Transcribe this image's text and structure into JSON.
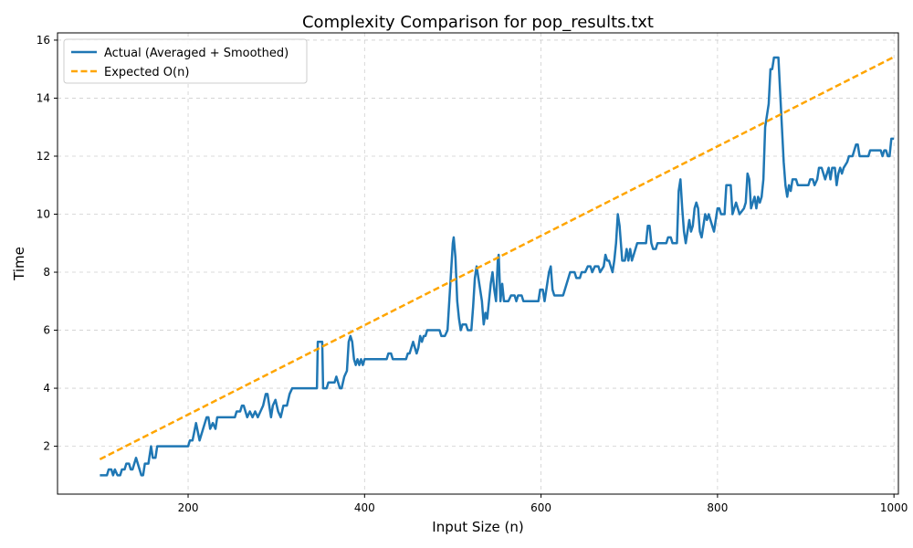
{
  "chart_data": {
    "type": "line",
    "title": "Complexity Comparison for pop_results.txt",
    "xlabel": "Input Size (n)",
    "ylabel": "Time",
    "xlim": [
      52,
      1005
    ],
    "ylim": [
      0.35,
      16.25
    ],
    "xticks": [
      200,
      400,
      600,
      800,
      1000
    ],
    "yticks": [
      2,
      4,
      6,
      8,
      10,
      12,
      14,
      16
    ],
    "grid": true,
    "legend_position": "top-left",
    "series": [
      {
        "name": "Actual (Averaged + Smoothed)",
        "color": "#1f77b4",
        "style": "solid",
        "points": [
          [
            100,
            1.0
          ],
          [
            108,
            1.0
          ],
          [
            110,
            1.2
          ],
          [
            113,
            1.2
          ],
          [
            115,
            1.0
          ],
          [
            117,
            1.2
          ],
          [
            120,
            1.0
          ],
          [
            123,
            1.0
          ],
          [
            125,
            1.2
          ],
          [
            128,
            1.2
          ],
          [
            130,
            1.4
          ],
          [
            133,
            1.4
          ],
          [
            135,
            1.2
          ],
          [
            137,
            1.2
          ],
          [
            139,
            1.4
          ],
          [
            141,
            1.6
          ],
          [
            143,
            1.4
          ],
          [
            145,
            1.2
          ],
          [
            147,
            1.0
          ],
          [
            149,
            1.0
          ],
          [
            151,
            1.4
          ],
          [
            155,
            1.4
          ],
          [
            158,
            2.0
          ],
          [
            160,
            1.6
          ],
          [
            163,
            1.6
          ],
          [
            165,
            2.0
          ],
          [
            200,
            2.0
          ],
          [
            202,
            2.2
          ],
          [
            205,
            2.2
          ],
          [
            207,
            2.5
          ],
          [
            209,
            2.8
          ],
          [
            211,
            2.5
          ],
          [
            213,
            2.2
          ],
          [
            215,
            2.4
          ],
          [
            217,
            2.6
          ],
          [
            219,
            2.8
          ],
          [
            221,
            3.0
          ],
          [
            223,
            3.0
          ],
          [
            225,
            2.6
          ],
          [
            228,
            2.8
          ],
          [
            231,
            2.6
          ],
          [
            233,
            3.0
          ],
          [
            253,
            3.0
          ],
          [
            255,
            3.2
          ],
          [
            259,
            3.2
          ],
          [
            261,
            3.4
          ],
          [
            263,
            3.4
          ],
          [
            265,
            3.2
          ],
          [
            267,
            3.0
          ],
          [
            270,
            3.2
          ],
          [
            273,
            3.0
          ],
          [
            276,
            3.2
          ],
          [
            279,
            3.0
          ],
          [
            282,
            3.2
          ],
          [
            285,
            3.4
          ],
          [
            288,
            3.8
          ],
          [
            290,
            3.8
          ],
          [
            292,
            3.4
          ],
          [
            294,
            3.0
          ],
          [
            296,
            3.4
          ],
          [
            299,
            3.6
          ],
          [
            302,
            3.2
          ],
          [
            305,
            3.0
          ],
          [
            308,
            3.4
          ],
          [
            312,
            3.4
          ],
          [
            315,
            3.8
          ],
          [
            318,
            4.0
          ],
          [
            346,
            4.0
          ],
          [
            347,
            5.6
          ],
          [
            352,
            5.6
          ],
          [
            353,
            4.0
          ],
          [
            357,
            4.0
          ],
          [
            359,
            4.2
          ],
          [
            366,
            4.2
          ],
          [
            368,
            4.4
          ],
          [
            370,
            4.2
          ],
          [
            372,
            4.0
          ],
          [
            374,
            4.0
          ],
          [
            377,
            4.4
          ],
          [
            380,
            4.6
          ],
          [
            382,
            5.6
          ],
          [
            384,
            5.8
          ],
          [
            386,
            5.6
          ],
          [
            388,
            5.0
          ],
          [
            390,
            4.8
          ],
          [
            392,
            5.0
          ],
          [
            394,
            4.8
          ],
          [
            396,
            5.0
          ],
          [
            398,
            4.8
          ],
          [
            400,
            5.0
          ],
          [
            425,
            5.0
          ],
          [
            427,
            5.2
          ],
          [
            430,
            5.2
          ],
          [
            432,
            5.0
          ],
          [
            447,
            5.0
          ],
          [
            449,
            5.2
          ],
          [
            451,
            5.2
          ],
          [
            453,
            5.4
          ],
          [
            455,
            5.6
          ],
          [
            457,
            5.4
          ],
          [
            459,
            5.2
          ],
          [
            461,
            5.4
          ],
          [
            463,
            5.8
          ],
          [
            465,
            5.6
          ],
          [
            467,
            5.8
          ],
          [
            469,
            5.8
          ],
          [
            471,
            6.0
          ],
          [
            485,
            6.0
          ],
          [
            487,
            5.8
          ],
          [
            491,
            5.8
          ],
          [
            494,
            6.0
          ],
          [
            496,
            7.0
          ],
          [
            498,
            8.0
          ],
          [
            500,
            9.0
          ],
          [
            501,
            9.2
          ],
          [
            503,
            8.5
          ],
          [
            505,
            7.0
          ],
          [
            507,
            6.4
          ],
          [
            509,
            6.0
          ],
          [
            511,
            6.2
          ],
          [
            515,
            6.2
          ],
          [
            517,
            6.0
          ],
          [
            521,
            6.0
          ],
          [
            523,
            6.8
          ],
          [
            525,
            7.8
          ],
          [
            527,
            8.2
          ],
          [
            529,
            7.8
          ],
          [
            531,
            7.4
          ],
          [
            533,
            7.0
          ],
          [
            535,
            6.2
          ],
          [
            537,
            6.6
          ],
          [
            539,
            6.4
          ],
          [
            541,
            7.0
          ],
          [
            543,
            7.6
          ],
          [
            545,
            8.0
          ],
          [
            547,
            7.4
          ],
          [
            549,
            7.0
          ],
          [
            551,
            8.4
          ],
          [
            552,
            8.6
          ],
          [
            554,
            7.0
          ],
          [
            556,
            7.6
          ],
          [
            558,
            7.0
          ],
          [
            563,
            7.0
          ],
          [
            566,
            7.2
          ],
          [
            570,
            7.2
          ],
          [
            572,
            7.0
          ],
          [
            574,
            7.2
          ],
          [
            578,
            7.2
          ],
          [
            580,
            7.0
          ],
          [
            597,
            7.0
          ],
          [
            599,
            7.4
          ],
          [
            602,
            7.4
          ],
          [
            604,
            7.0
          ],
          [
            607,
            7.6
          ],
          [
            609,
            8.0
          ],
          [
            611,
            8.2
          ],
          [
            613,
            7.4
          ],
          [
            615,
            7.2
          ],
          [
            625,
            7.2
          ],
          [
            627,
            7.4
          ],
          [
            631,
            7.8
          ],
          [
            633,
            8.0
          ],
          [
            638,
            8.0
          ],
          [
            640,
            7.8
          ],
          [
            644,
            7.8
          ],
          [
            646,
            8.0
          ],
          [
            650,
            8.0
          ],
          [
            653,
            8.2
          ],
          [
            656,
            8.2
          ],
          [
            658,
            8.0
          ],
          [
            661,
            8.2
          ],
          [
            665,
            8.2
          ],
          [
            667,
            8.0
          ],
          [
            671,
            8.2
          ],
          [
            673,
            8.6
          ],
          [
            675,
            8.4
          ],
          [
            677,
            8.4
          ],
          [
            679,
            8.2
          ],
          [
            681,
            8.0
          ],
          [
            683,
            8.4
          ],
          [
            685,
            9.0
          ],
          [
            687,
            10.0
          ],
          [
            689,
            9.6
          ],
          [
            691,
            8.8
          ],
          [
            692,
            8.4
          ],
          [
            695,
            8.4
          ],
          [
            697,
            8.8
          ],
          [
            699,
            8.4
          ],
          [
            701,
            8.8
          ],
          [
            703,
            8.4
          ],
          [
            705,
            8.6
          ],
          [
            707,
            8.8
          ],
          [
            709,
            9.0
          ],
          [
            719,
            9.0
          ],
          [
            721,
            9.6
          ],
          [
            723,
            9.6
          ],
          [
            725,
            9.0
          ],
          [
            727,
            8.8
          ],
          [
            730,
            8.8
          ],
          [
            732,
            9.0
          ],
          [
            742,
            9.0
          ],
          [
            744,
            9.2
          ],
          [
            747,
            9.2
          ],
          [
            749,
            9.0
          ],
          [
            754,
            9.0
          ],
          [
            756,
            10.8
          ],
          [
            758,
            11.2
          ],
          [
            760,
            10.2
          ],
          [
            762,
            9.4
          ],
          [
            764,
            9.0
          ],
          [
            766,
            9.4
          ],
          [
            768,
            9.8
          ],
          [
            770,
            9.4
          ],
          [
            772,
            9.6
          ],
          [
            774,
            10.2
          ],
          [
            776,
            10.4
          ],
          [
            778,
            10.2
          ],
          [
            780,
            9.4
          ],
          [
            782,
            9.2
          ],
          [
            784,
            9.6
          ],
          [
            786,
            10.0
          ],
          [
            788,
            9.8
          ],
          [
            790,
            10.0
          ],
          [
            792,
            9.8
          ],
          [
            794,
            9.6
          ],
          [
            796,
            9.4
          ],
          [
            798,
            9.8
          ],
          [
            800,
            10.2
          ],
          [
            802,
            10.2
          ],
          [
            804,
            10.0
          ],
          [
            808,
            10.0
          ],
          [
            810,
            11.0
          ],
          [
            815,
            11.0
          ],
          [
            817,
            10.0
          ],
          [
            819,
            10.2
          ],
          [
            821,
            10.4
          ],
          [
            823,
            10.2
          ],
          [
            825,
            10.0
          ],
          [
            830,
            10.2
          ],
          [
            832,
            10.4
          ],
          [
            834,
            11.4
          ],
          [
            836,
            11.2
          ],
          [
            838,
            10.2
          ],
          [
            840,
            10.4
          ],
          [
            842,
            10.6
          ],
          [
            844,
            10.2
          ],
          [
            846,
            10.6
          ],
          [
            848,
            10.4
          ],
          [
            850,
            10.6
          ],
          [
            852,
            11.2
          ],
          [
            854,
            13.0
          ],
          [
            856,
            13.4
          ],
          [
            858,
            13.8
          ],
          [
            860,
            15.0
          ],
          [
            862,
            15.0
          ],
          [
            864,
            15.4
          ],
          [
            869,
            15.4
          ],
          [
            871,
            14.2
          ],
          [
            873,
            13.0
          ],
          [
            875,
            11.8
          ],
          [
            877,
            11.0
          ],
          [
            879,
            10.6
          ],
          [
            881,
            11.0
          ],
          [
            883,
            10.8
          ],
          [
            885,
            11.2
          ],
          [
            889,
            11.2
          ],
          [
            891,
            11.0
          ],
          [
            903,
            11.0
          ],
          [
            905,
            11.2
          ],
          [
            908,
            11.2
          ],
          [
            910,
            11.0
          ],
          [
            913,
            11.2
          ],
          [
            915,
            11.6
          ],
          [
            918,
            11.6
          ],
          [
            920,
            11.4
          ],
          [
            922,
            11.2
          ],
          [
            924,
            11.4
          ],
          [
            926,
            11.6
          ],
          [
            928,
            11.2
          ],
          [
            930,
            11.6
          ],
          [
            933,
            11.6
          ],
          [
            935,
            11.0
          ],
          [
            937,
            11.4
          ],
          [
            939,
            11.6
          ],
          [
            941,
            11.4
          ],
          [
            943,
            11.6
          ],
          [
            947,
            11.8
          ],
          [
            949,
            12.0
          ],
          [
            953,
            12.0
          ],
          [
            955,
            12.2
          ],
          [
            957,
            12.4
          ],
          [
            959,
            12.4
          ],
          [
            961,
            12.0
          ],
          [
            971,
            12.0
          ],
          [
            973,
            12.2
          ],
          [
            985,
            12.2
          ],
          [
            987,
            12.0
          ],
          [
            989,
            12.2
          ],
          [
            991,
            12.2
          ],
          [
            993,
            12.0
          ],
          [
            995,
            12.0
          ],
          [
            997,
            12.6
          ],
          [
            1000,
            12.6
          ]
        ]
      },
      {
        "name": "Expected O(n)",
        "color": "#ffa500",
        "style": "dashed",
        "points": [
          [
            100,
            1.55
          ],
          [
            1000,
            15.42
          ]
        ]
      }
    ]
  }
}
